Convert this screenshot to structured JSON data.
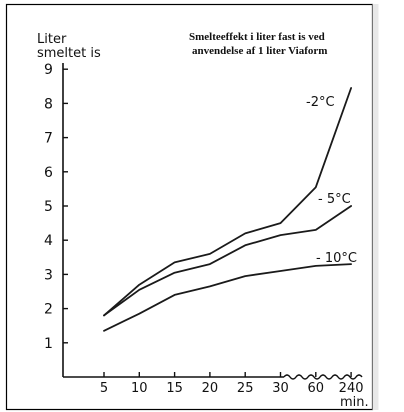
{
  "chart_data": {
    "type": "line",
    "title": "Smelteeffekt i liter fast is ved anvendelse af 1 liter Viaform",
    "title_lines": [
      "Smelteeffekt i liter fast is ved",
      "anvendelse af 1 liter Viaform"
    ],
    "ylabel_lines": [
      "Liter",
      "smeltet is"
    ],
    "xlabel": "min.",
    "categories": [
      "5",
      "10",
      "15",
      "20",
      "25",
      "30",
      "60",
      "240"
    ],
    "y_ticks": [
      "1",
      "2",
      "3",
      "4",
      "5",
      "6",
      "7",
      "8",
      "9"
    ],
    "ylim": [
      0,
      9.5
    ],
    "axis_break_marks": "wavy segment between 30 and 240",
    "grid": false,
    "legend": "none (series labelled directly at line ends)",
    "series": [
      {
        "name": "-2°C",
        "values": [
          1.8,
          2.7,
          3.35,
          3.6,
          4.2,
          4.5,
          5.55,
          8.45
        ]
      },
      {
        "name": "- 5°C",
        "values": [
          1.8,
          2.55,
          3.05,
          3.3,
          3.85,
          4.15,
          4.3,
          5.0
        ]
      },
      {
        "name": "- 10°C",
        "values": [
          1.35,
          1.85,
          2.4,
          2.65,
          2.95,
          3.1,
          3.25,
          3.3
        ]
      }
    ],
    "colors": {
      "line": "#1a1a1a",
      "background": "#ffffff"
    }
  }
}
